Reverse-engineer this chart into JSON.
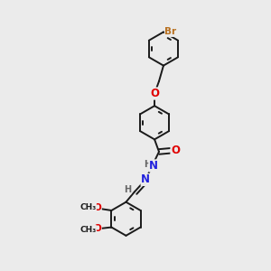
{
  "bg_color": "#ebebeb",
  "bond_color": "#1a1a1a",
  "bond_width": 1.4,
  "dbo": 0.055,
  "atom_colors": {
    "O": "#e00000",
    "N": "#2222dd",
    "Br": "#b87020",
    "H": "#666666",
    "C": "#1a1a1a"
  },
  "fs": 8.5
}
